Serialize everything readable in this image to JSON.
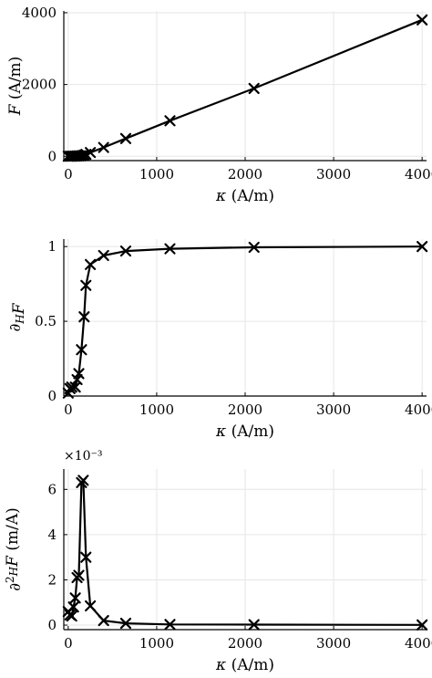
{
  "chart_data": [
    {
      "type": "line",
      "title": "",
      "xlabel": "κ (A/m)",
      "ylabel": "F (A/m)",
      "xlim": [
        -50,
        4050
      ],
      "ylim": [
        -120,
        4050
      ],
      "xticks": [
        0,
        1000,
        2000,
        3000,
        4000
      ],
      "yticks": [
        0,
        2000,
        4000
      ],
      "xtick_labels": [
        "0",
        "1000",
        "2000",
        "3000",
        "4000"
      ],
      "ytick_labels": [
        "0",
        "2000",
        "4000"
      ],
      "exponent_label": "",
      "grid": true,
      "marker": "x",
      "series": [
        {
          "x": [
            0,
            20,
            40,
            60,
            80,
            100,
            120,
            140,
            160,
            180,
            200,
            250,
            400,
            650,
            1150,
            2100,
            4000
          ],
          "y": [
            0,
            0.4,
            2,
            4,
            6,
            9,
            12,
            14,
            20,
            30,
            55,
            105,
            245,
            495,
            990,
            1890,
            3800
          ]
        }
      ]
    },
    {
      "type": "line",
      "title": "",
      "xlabel": "κ (A/m)",
      "ylabel": "∂H F",
      "xlim": [
        -50,
        4050
      ],
      "ylim": [
        0,
        1.05
      ],
      "xticks": [
        0,
        1000,
        2000,
        3000,
        4000
      ],
      "yticks": [
        0,
        0.5,
        1
      ],
      "xtick_labels": [
        "0",
        "1000",
        "2000",
        "3000",
        "4000"
      ],
      "ytick_labels": [
        "0",
        "0.5",
        "1"
      ],
      "exponent_label": "",
      "grid": true,
      "marker": "x",
      "series": [
        {
          "x": [
            0,
            20,
            40,
            80,
            100,
            120,
            150,
            180,
            200,
            250,
            400,
            650,
            1150,
            2100,
            4000
          ],
          "y": [
            0.02,
            0.05,
            0.06,
            0.06,
            0.11,
            0.15,
            0.31,
            0.53,
            0.74,
            0.88,
            0.94,
            0.97,
            0.985,
            0.995,
            1.0
          ]
        }
      ]
    },
    {
      "type": "line",
      "title": "",
      "xlabel": "κ (A/m)",
      "ylabel": "∂²H F (m/A)",
      "xlim": [
        -50,
        4050
      ],
      "ylim": [
        -0.2,
        6.9
      ],
      "xticks": [
        0,
        1000,
        2000,
        3000,
        4000
      ],
      "yticks": [
        0,
        2,
        4,
        6
      ],
      "xtick_labels": [
        "0",
        "1000",
        "2000",
        "3000",
        "4000"
      ],
      "ytick_labels": [
        "0",
        "2",
        "4",
        "6"
      ],
      "exponent_label": "×10⁻³",
      "grid": true,
      "marker": "x",
      "series": [
        {
          "x": [
            0,
            20,
            40,
            60,
            80,
            100,
            120,
            150,
            170,
            200,
            250,
            400,
            650,
            1150,
            2100,
            4000
          ],
          "y": [
            0.6,
            0.45,
            0.4,
            0.8,
            1.2,
            2.1,
            2.2,
            6.3,
            6.4,
            3.0,
            0.85,
            0.2,
            0.08,
            0.03,
            0.02,
            0.01
          ]
        }
      ]
    }
  ]
}
